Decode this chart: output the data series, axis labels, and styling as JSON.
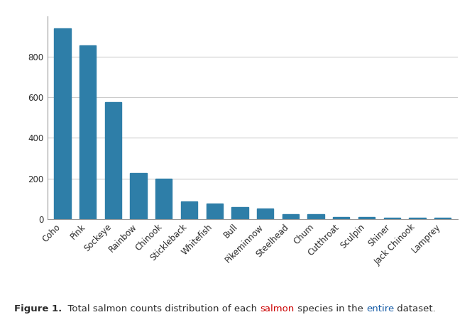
{
  "categories": [
    "Coho",
    "Pink",
    "Sockeye",
    "Rainbow",
    "Chinook",
    "Stickleback",
    "Whitefish",
    "Bull",
    "Pikeminnow",
    "Steelhead",
    "Chum",
    "Cutthroat",
    "Sculpin",
    "Shiner",
    "Jack Chinook",
    "Lamprey"
  ],
  "values": [
    940,
    855,
    577,
    225,
    200,
    88,
    77,
    57,
    52,
    22,
    25,
    10,
    8,
    7,
    7,
    7
  ],
  "bar_color": "#2e7ea8",
  "ylim": [
    0,
    1000
  ],
  "yticks": [
    0,
    200,
    400,
    600,
    800
  ],
  "caption_bold": "Figure 1.",
  "caption_part1": "  Total salmon counts distribution of each ",
  "caption_colored": "salmon",
  "caption_part2": " species in the ",
  "caption_colored2": "entire",
  "caption_part3": " dataset.",
  "caption_color_normal": "#2b2b2b",
  "caption_color_highlight": "#cc0000",
  "caption_color_blue": "#1a5fa8",
  "caption_fontsize": 9.5,
  "bar_width": 0.65,
  "background_color": "#ffffff",
  "grid_color": "#cccccc",
  "tick_label_fontsize": 8.5
}
